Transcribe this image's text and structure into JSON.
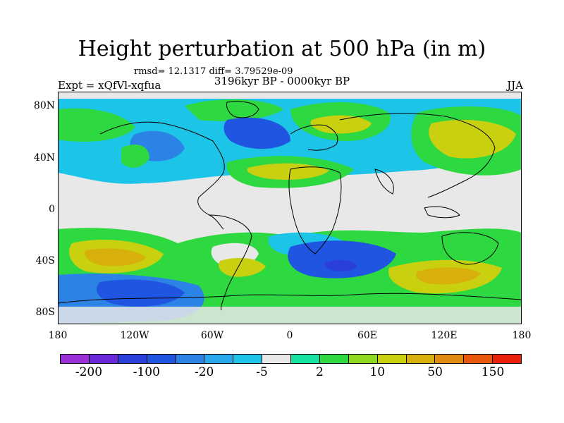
{
  "title": "Height perturbation at 500 hPa (in m)",
  "rmsd_text": "rmsd= 12.1317 diff= 3.79529e-09",
  "experiment": "Expt = xQfVl-xqfua",
  "period": "3196kyr BP - 0000kyr BP",
  "season": "JJA",
  "lat_labels": [
    "80N",
    "40N",
    "0",
    "40S",
    "80S"
  ],
  "lon_labels": [
    "180",
    "120W",
    "60W",
    "0",
    "60E",
    "120E",
    "180"
  ],
  "colorbar": {
    "labels": [
      "-200",
      "-100",
      "-20",
      "-5",
      "2",
      "10",
      "50",
      "150"
    ],
    "colors": [
      "#9b30d8",
      "#6a28d8",
      "#2a3fd8",
      "#1f55e0",
      "#2b83e6",
      "#28a8ec",
      "#1cc4e8",
      "#e8e8e8",
      "#18e0a0",
      "#2ed840",
      "#8ed820",
      "#c8d010",
      "#d8b00c",
      "#e08a10",
      "#e8580c",
      "#e8200c"
    ]
  },
  "colors": {
    "neutral": "#e8e8e8",
    "coast": "#000000"
  }
}
